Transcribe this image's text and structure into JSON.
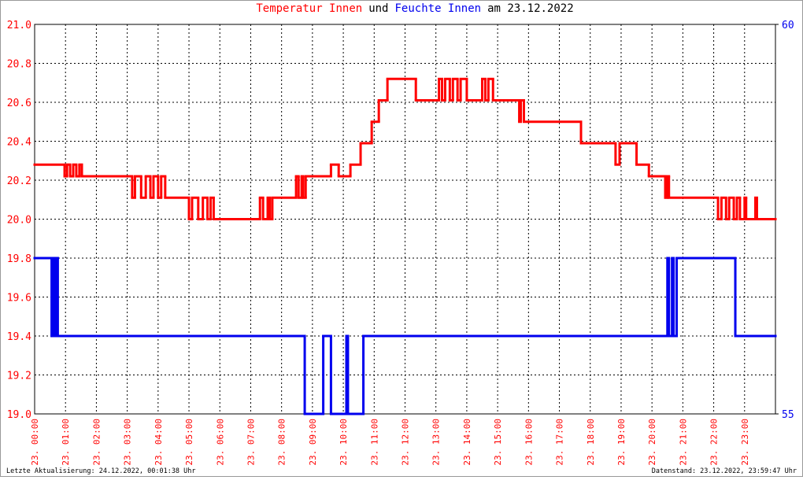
{
  "chart_data": {
    "type": "step-line",
    "title_parts": [
      {
        "text": "Temperatur Innen",
        "color": "#ff0000"
      },
      {
        "text": "und",
        "color": "#000000"
      },
      {
        "text": "Feuchte Innen",
        "color": "#0000ee"
      },
      {
        "text": "am 23.12.2022",
        "color": "#000000"
      }
    ],
    "footer_left": "Letzte Aktualisierung: 24.12.2022, 00:01:38 Uhr",
    "footer_right": "Datenstand: 23.12.2022, 23:59:47 Uhr",
    "step": "post",
    "grid": true,
    "xlim": [
      0,
      24
    ],
    "xticks": [
      {
        "value": 0,
        "label": "23. 00:00"
      },
      {
        "value": 1,
        "label": "23. 01:00"
      },
      {
        "value": 2,
        "label": "23. 02:00"
      },
      {
        "value": 3,
        "label": "23. 03:00"
      },
      {
        "value": 4,
        "label": "23. 04:00"
      },
      {
        "value": 5,
        "label": "23. 05:00"
      },
      {
        "value": 6,
        "label": "23. 06:00"
      },
      {
        "value": 7,
        "label": "23. 07:00"
      },
      {
        "value": 8,
        "label": "23. 08:00"
      },
      {
        "value": 9,
        "label": "23. 09:00"
      },
      {
        "value": 10,
        "label": "23. 10:00"
      },
      {
        "value": 11,
        "label": "23. 11:00"
      },
      {
        "value": 12,
        "label": "23. 12:00"
      },
      {
        "value": 13,
        "label": "23. 13:00"
      },
      {
        "value": 14,
        "label": "23. 14:00"
      },
      {
        "value": 15,
        "label": "23. 15:00"
      },
      {
        "value": 16,
        "label": "23. 16:00"
      },
      {
        "value": 17,
        "label": "23. 17:00"
      },
      {
        "value": 18,
        "label": "23. 18:00"
      },
      {
        "value": 19,
        "label": "23. 19:00"
      },
      {
        "value": 20,
        "label": "23. 20:00"
      },
      {
        "value": 21,
        "label": "23. 21:00"
      },
      {
        "value": 22,
        "label": "23. 22:00"
      },
      {
        "value": 23,
        "label": "23. 23:00"
      }
    ],
    "ylim": [
      19,
      21
    ],
    "yticks": [
      {
        "value": 19,
        "label": "19.0"
      },
      19.2,
      19.4,
      19.6,
      19.8,
      {
        "value": 20,
        "label": "20.0"
      },
      20.2,
      20.4,
      20.6,
      20.8,
      {
        "value": 21,
        "label": "21.0"
      }
    ],
    "y_tick_color": "#ff0000",
    "y2lim": [
      55,
      60
    ],
    "y2ticks": [
      55,
      60
    ],
    "y2_tick_color": "#0000ee",
    "x_tick_color": "#ff0000",
    "series": [
      {
        "name": "Temperatur Innen",
        "color": "#ff0000",
        "x": [
          0,
          0.97,
          1.05,
          1.15,
          1.25,
          1.35,
          1.45,
          1.53,
          3.16,
          3.25,
          3.45,
          3.6,
          3.75,
          3.85,
          4.0,
          4.1,
          4.23,
          5.0,
          5.1,
          5.3,
          5.45,
          5.6,
          5.7,
          5.8,
          7.3,
          7.4,
          7.55,
          7.62,
          7.7,
          8.47,
          8.55,
          8.65,
          8.7,
          8.78,
          9.6,
          9.85,
          10.23,
          10.56,
          10.92,
          11.15,
          11.43,
          12.35,
          13.1,
          13.2,
          13.3,
          13.45,
          13.55,
          13.7,
          13.8,
          14.0,
          14.5,
          14.6,
          14.7,
          14.85,
          15.7,
          15.75,
          15.85,
          17.7,
          18.82,
          18.95,
          19.5,
          19.9,
          20.43,
          20.5,
          20.55,
          22.14,
          22.25,
          22.4,
          22.5,
          22.65,
          22.75,
          22.85,
          23.0,
          23.05,
          23.35,
          23.4
        ],
        "values": [
          20.28,
          20.22,
          20.28,
          20.22,
          20.28,
          20.22,
          20.28,
          20.22,
          20.11,
          20.22,
          20.11,
          20.22,
          20.11,
          20.22,
          20.11,
          20.22,
          20.11,
          20.0,
          20.11,
          20.0,
          20.11,
          20.0,
          20.11,
          20.0,
          20.11,
          20.0,
          20.11,
          20.0,
          20.11,
          20.22,
          20.11,
          20.22,
          20.11,
          20.22,
          20.28,
          20.22,
          20.28,
          20.39,
          20.5,
          20.61,
          20.72,
          20.61,
          20.72,
          20.61,
          20.72,
          20.61,
          20.72,
          20.61,
          20.72,
          20.61,
          20.72,
          20.61,
          20.72,
          20.61,
          20.5,
          20.61,
          20.5,
          20.39,
          20.28,
          20.39,
          20.28,
          20.22,
          20.11,
          20.22,
          20.11,
          20.0,
          20.11,
          20.0,
          20.11,
          20.0,
          20.11,
          20.0,
          20.11,
          20.0,
          20.11,
          20.0
        ]
      },
      {
        "name": "Feuchte Innen",
        "color": "#0000ee",
        "axis": "y2",
        "x": [
          0,
          0.55,
          0.6,
          0.65,
          0.7,
          0.75,
          8.75,
          9.35,
          9.6,
          10.1,
          10.15,
          10.65,
          20.5,
          20.55,
          20.65,
          20.7,
          20.8,
          22.7
        ],
        "values": [
          57,
          56,
          57,
          56,
          57,
          56,
          55,
          56,
          55,
          56,
          55,
          56,
          57,
          56,
          57,
          56,
          57,
          56
        ]
      }
    ]
  }
}
